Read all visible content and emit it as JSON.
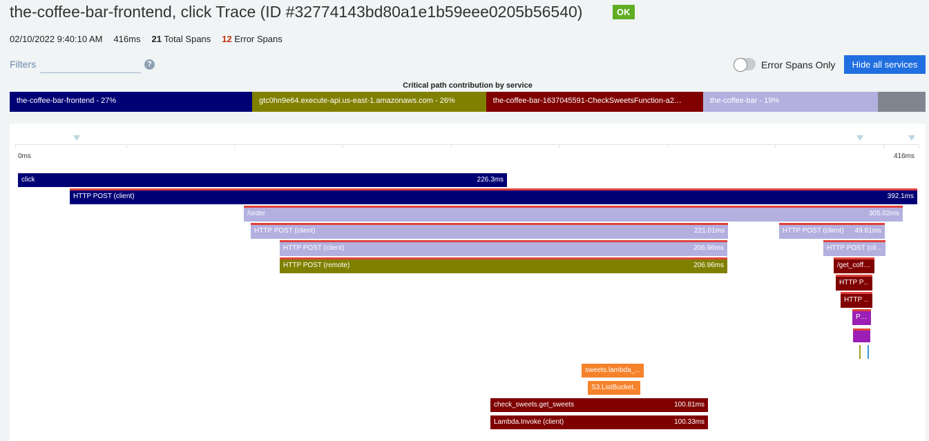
{
  "header": {
    "title": "the-coffee-bar-frontend, click Trace (ID #32774143bd80a1e1b59eee0205b56540)",
    "status": "OK",
    "timestamp": "02/10/2022 9:40:10 AM",
    "duration": "416ms",
    "total_spans_count": "21",
    "total_spans_label": "Total Spans",
    "error_spans_count": "12",
    "error_spans_label": "Error Spans"
  },
  "filters": {
    "label": "Filters",
    "value": "",
    "help": "?"
  },
  "toolbar": {
    "error_only_label": "Error Spans Only",
    "error_only_on": false,
    "hide_services_label": "Hide all services"
  },
  "critical_path": {
    "title": "Critical path contribution by service",
    "segments": [
      {
        "label": "the-coffee-bar-frontend - 27%",
        "percent": 27,
        "color": "#000075"
      },
      {
        "label": "gtc0hn9e64.execute-api.us-east-1.amazonaws.com - 26%",
        "percent": 26,
        "color": "#808000"
      },
      {
        "label": "the-coffee-bar-1637045591-CheckSweetsFunction-a2…",
        "percent": 24,
        "color": "#800000"
      },
      {
        "label": "the-coffee-bar - 19%",
        "percent": 19,
        "color": "#b3b0e0"
      },
      {
        "label": "",
        "percent": 4,
        "color": "#7f8690"
      }
    ]
  },
  "timeline": {
    "start": "0ms",
    "end": "416ms"
  },
  "spans": [
    {
      "name": "click",
      "duration": "226.3ms"
    },
    {
      "name": "HTTP POST (client)",
      "duration": "392.1ms"
    },
    {
      "name": "/order",
      "duration": "305.02ms"
    },
    {
      "name": "HTTP POST (client)",
      "duration": "221.01ms"
    },
    {
      "name": "HTTP POST (client)",
      "duration": "49.81ms"
    },
    {
      "name": "HTTP POST (client)",
      "duration": "206.96ms"
    },
    {
      "name": "HTTP POST (cli…",
      "duration": ""
    },
    {
      "name": "HTTP POST (remote)",
      "duration": "206.96ms"
    },
    {
      "name": "/get_coff…",
      "duration": ""
    },
    {
      "name": "HTTP P…",
      "duration": ""
    },
    {
      "name": "HTTP …",
      "duration": ""
    },
    {
      "name": "P…",
      "duration": ""
    },
    {
      "name": "sweets.lambda_…",
      "duration": ""
    },
    {
      "name": "S3.ListBucket…",
      "duration": ""
    },
    {
      "name": "check_sweets.get_sweets",
      "duration": "100.81ms"
    },
    {
      "name": "Lambda.Invoke (client)",
      "duration": "100.33ms"
    }
  ]
}
